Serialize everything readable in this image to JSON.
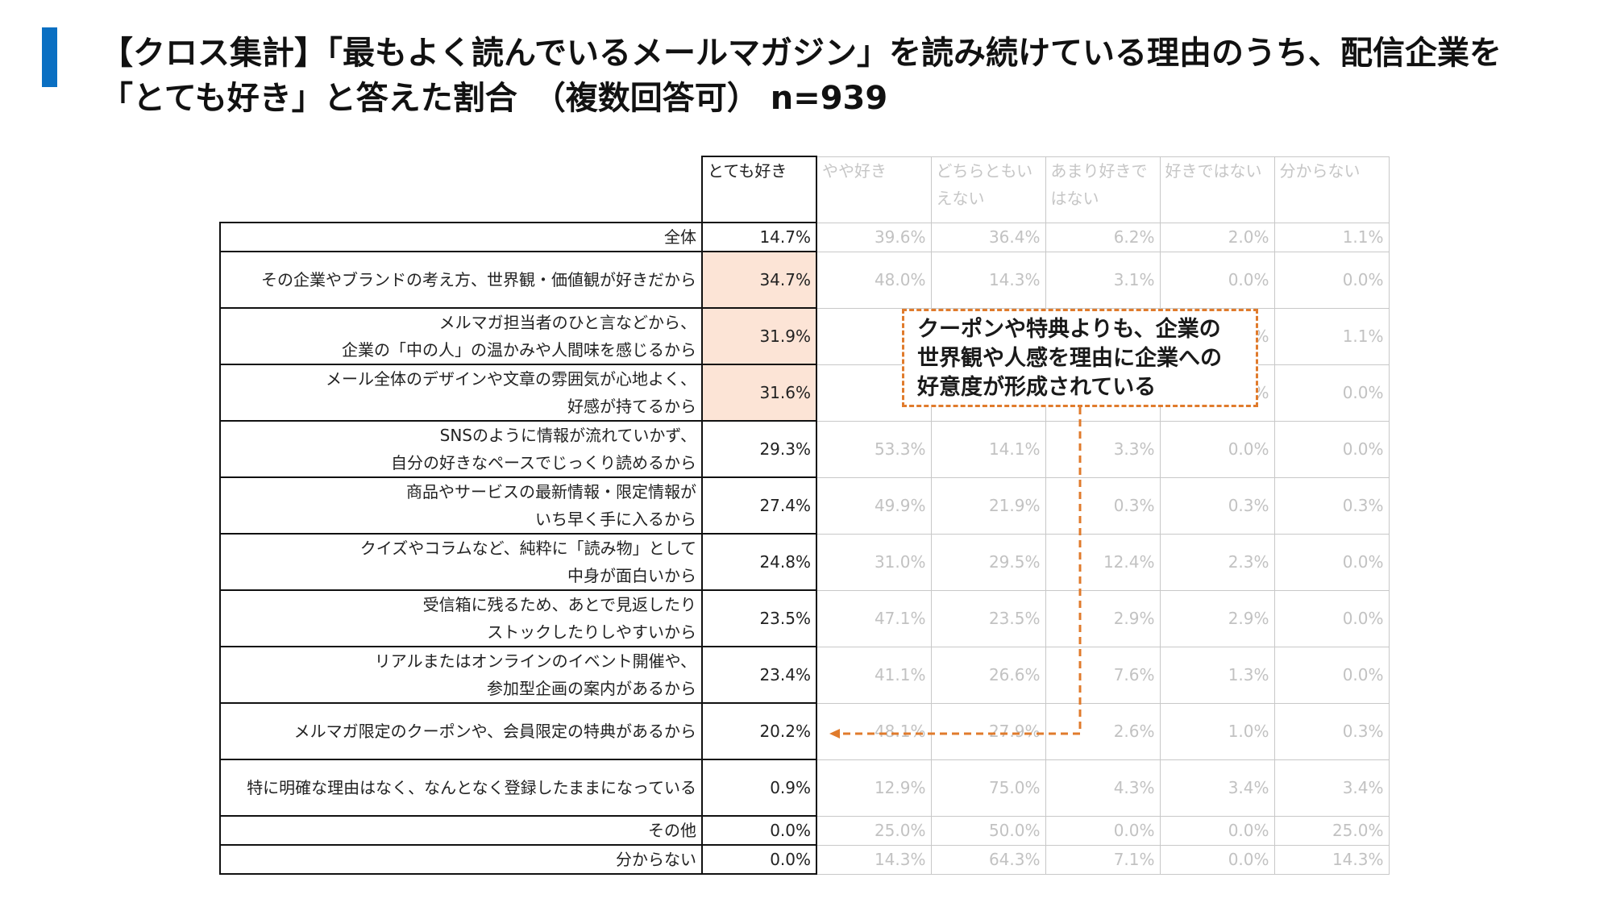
{
  "title": {
    "line1": "【クロス集計】「最もよく読んでいるメールマガジン」を読み続けている理由のうち、配信企業を",
    "line2": "「とても好き」と答えた割合　（複数回答可） n=939"
  },
  "table": {
    "headers": [
      "とても好き",
      "やや好き",
      "どちらともいえない",
      "あまり好きではない",
      "好きではない",
      "分からない"
    ],
    "rows": [
      {
        "label": [
          "全体"
        ],
        "values": [
          "14.7%",
          "39.6%",
          "36.4%",
          "6.2%",
          "2.0%",
          "1.1%"
        ]
      },
      {
        "label": [
          "その企業やブランドの考え方、世界観・価値観が好きだから"
        ],
        "values": [
          "34.7%",
          "48.0%",
          "14.3%",
          "3.1%",
          "0.0%",
          "0.0%"
        ]
      },
      {
        "label": [
          "メルマガ担当者のひと言などから、",
          "企業の「中の人」の温かみや人間味を感じるから"
        ],
        "values": [
          "31.9%",
          "",
          "",
          "",
          "1.1%",
          "1.1%"
        ]
      },
      {
        "label": [
          "メール全体のデザインや文章の雰囲気が心地よく、",
          "好感が持てるから"
        ],
        "values": [
          "31.6%",
          "",
          "",
          "",
          "2.3%",
          "0.0%"
        ]
      },
      {
        "label": [
          "SNSのように情報が流れていかず、",
          "自分の好きなペースでじっくり読めるから"
        ],
        "values": [
          "29.3%",
          "53.3%",
          "14.1%",
          "3.3%",
          "0.0%",
          "0.0%"
        ]
      },
      {
        "label": [
          "商品やサービスの最新情報・限定情報が",
          "いち早く手に入るから"
        ],
        "values": [
          "27.4%",
          "49.9%",
          "21.9%",
          "0.3%",
          "0.3%",
          "0.3%"
        ]
      },
      {
        "label": [
          "クイズやコラムなど、純粋に「読み物」として",
          "中身が面白いから"
        ],
        "values": [
          "24.8%",
          "31.0%",
          "29.5%",
          "12.4%",
          "2.3%",
          "0.0%"
        ]
      },
      {
        "label": [
          "受信箱に残るため、あとで見返したり",
          "ストックしたりしやすいから"
        ],
        "values": [
          "23.5%",
          "47.1%",
          "23.5%",
          "2.9%",
          "2.9%",
          "0.0%"
        ]
      },
      {
        "label": [
          "リアルまたはオンラインのイベント開催や、",
          "参加型企画の案内があるから"
        ],
        "values": [
          "23.4%",
          "41.1%",
          "26.6%",
          "7.6%",
          "1.3%",
          "0.0%"
        ]
      },
      {
        "label": [
          "メルマガ限定のクーポンや、会員限定の特典があるから"
        ],
        "values": [
          "20.2%",
          "48.1%",
          "27.9%",
          "2.6%",
          "1.0%",
          "0.3%"
        ]
      },
      {
        "label": [
          "特に明確な理由はなく、なんとなく登録したままになっている"
        ],
        "values": [
          "0.9%",
          "12.9%",
          "75.0%",
          "4.3%",
          "3.4%",
          "3.4%"
        ]
      },
      {
        "label": [
          "その他"
        ],
        "values": [
          "0.0%",
          "25.0%",
          "50.0%",
          "0.0%",
          "0.0%",
          "25.0%"
        ]
      },
      {
        "label": [
          "分からない"
        ],
        "values": [
          "0.0%",
          "14.3%",
          "64.3%",
          "7.1%",
          "0.0%",
          "14.3%"
        ]
      }
    ],
    "highlight_color": "#fce4d6"
  },
  "callout": {
    "lines": [
      "クーポンや特典よりも、企業の",
      "世界観や人感を理由に企業への",
      "好意度が形成されている"
    ],
    "color": "#e07b2c"
  },
  "accent_color": "#0a6fc2"
}
